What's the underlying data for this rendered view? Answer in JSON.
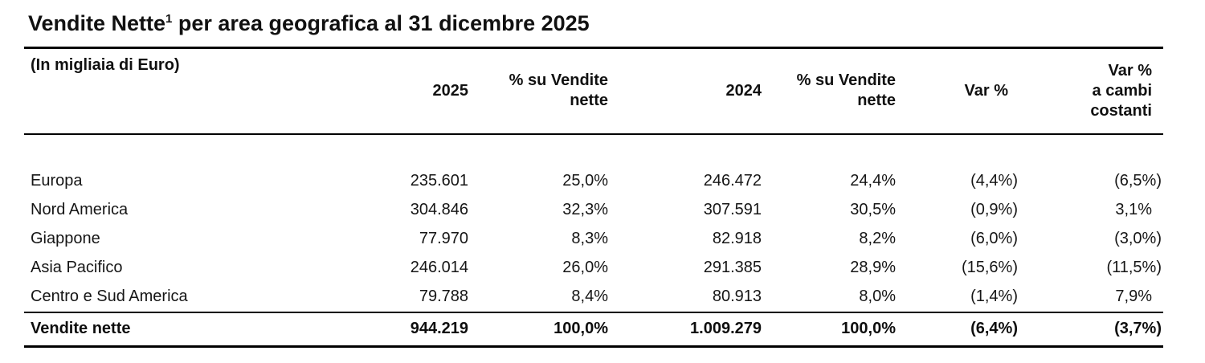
{
  "title": {
    "main": "Vendite Nette",
    "superscript": "1",
    "rest": " per area geografica al 31 dicembre 2025"
  },
  "table": {
    "unit_label": "(In migliaia di Euro)",
    "columns": [
      {
        "id": "y2025",
        "lines": [
          "2025"
        ]
      },
      {
        "id": "pct-2025",
        "lines": [
          "% su Vendite",
          "nette"
        ]
      },
      {
        "id": "y2024",
        "lines": [
          "2024"
        ]
      },
      {
        "id": "pct-2024",
        "lines": [
          "% su Vendite",
          "nette"
        ]
      },
      {
        "id": "var",
        "lines": [
          "Var %"
        ]
      },
      {
        "id": "var-cc",
        "lines": [
          "Var %",
          "a cambi",
          "costanti"
        ]
      }
    ],
    "rows": [
      {
        "label": "Europa",
        "values": [
          "235.601",
          "25,0%",
          "246.472",
          "24,4%",
          "(4,4%)",
          "(6,5%)"
        ]
      },
      {
        "label": "Nord America",
        "values": [
          "304.846",
          "32,3%",
          "307.591",
          "30,5%",
          "(0,9%)",
          "3,1%"
        ]
      },
      {
        "label": "Giappone",
        "values": [
          "77.970",
          "8,3%",
          "82.918",
          "8,2%",
          "(6,0%)",
          "(3,0%)"
        ]
      },
      {
        "label": "Asia Pacifico",
        "values": [
          "246.014",
          "26,0%",
          "291.385",
          "28,9%",
          "(15,6%)",
          "(11,5%)"
        ]
      },
      {
        "label": "Centro e Sud America",
        "values": [
          "79.788",
          "8,4%",
          "80.913",
          "8,0%",
          "(1,4%)",
          "7,9%"
        ]
      }
    ],
    "total": {
      "label": "Vendite nette",
      "values": [
        "944.219",
        "100,0%",
        "1.009.279",
        "100,0%",
        "(6,4%)",
        "(3,7%)"
      ]
    }
  },
  "colors": {
    "text": "#161616",
    "rule": "#000000",
    "background": "#ffffff"
  }
}
